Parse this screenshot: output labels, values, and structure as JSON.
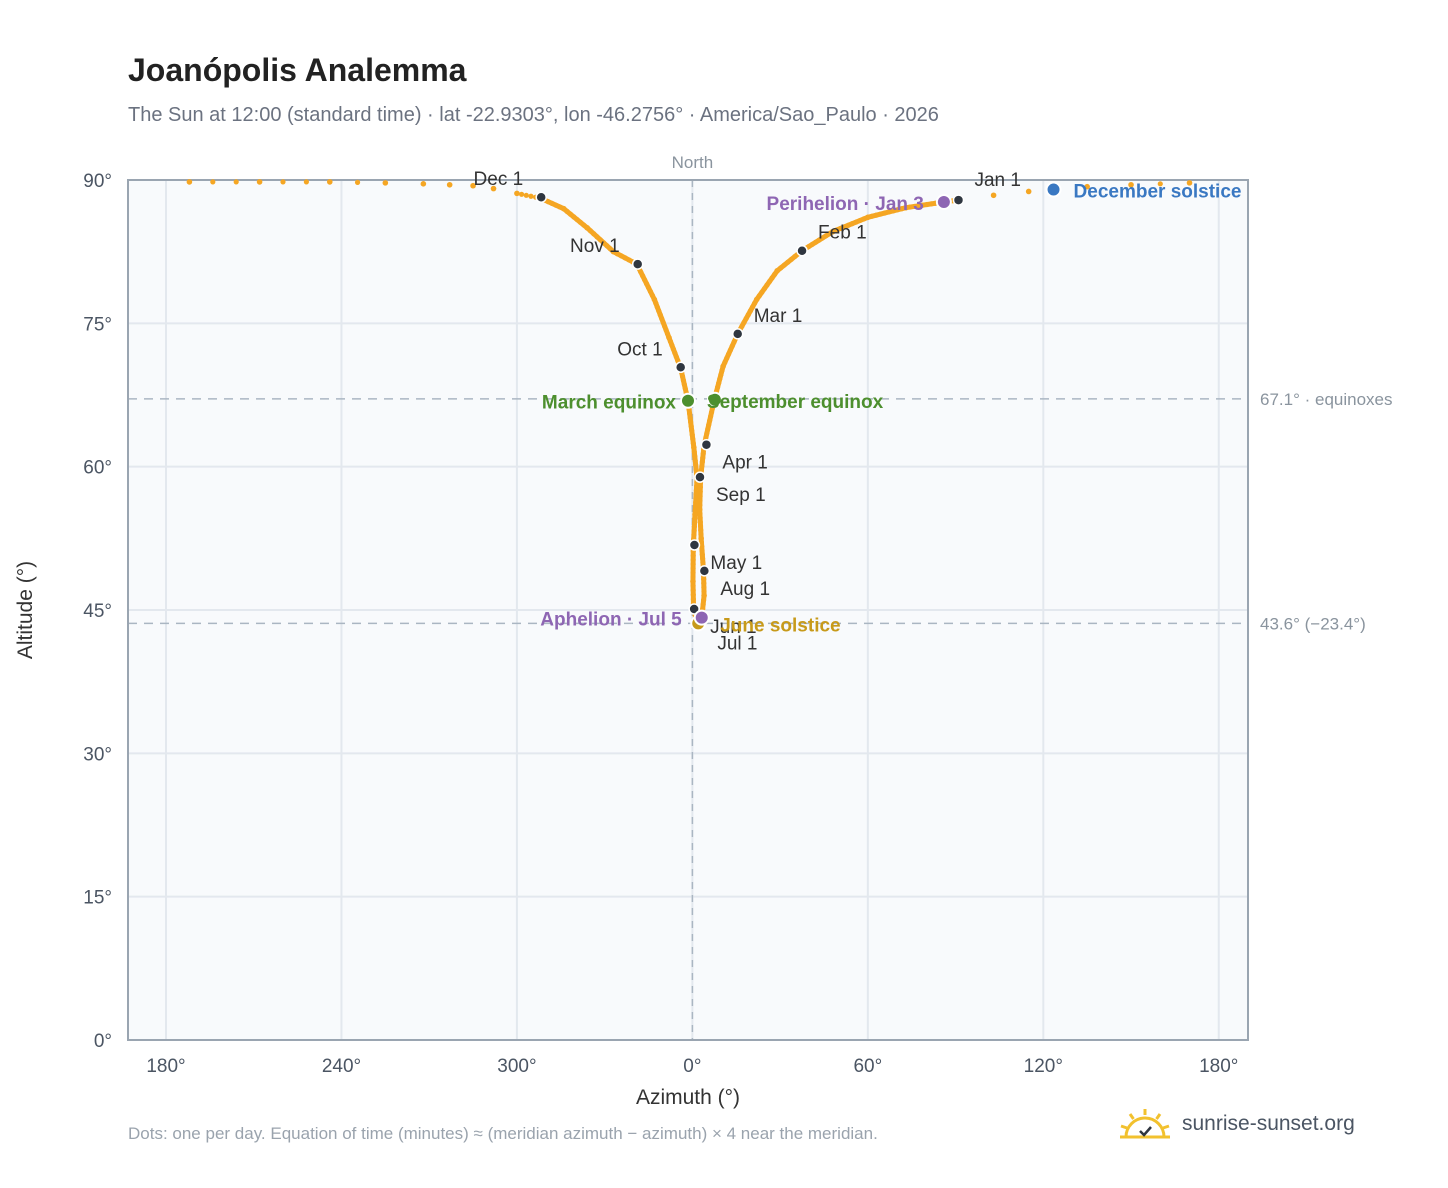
{
  "page": {
    "title": "Joanópolis Analemma",
    "subtitle": "The Sun at 12:00 (standard time) · lat -22.9303°, lon -46.2756° · America/Sao_Paulo · 2026",
    "footnote": "Dots: one per day. Equation of time (minutes) ≈ (meridian azimuth − azimuth) × 4 near the meridian.",
    "brand": "sunrise-sunset.org"
  },
  "chart_data": {
    "type": "scatter",
    "xlabel": "Azimuth (°)",
    "ylabel": "Altitude (°)",
    "north_label": "North",
    "x_ticks": [
      "180°",
      "240°",
      "300°",
      "0°",
      "60°",
      "120°",
      "180°"
    ],
    "y_ticks": [
      "0°",
      "15°",
      "30°",
      "45°",
      "60°",
      "75°",
      "90°"
    ],
    "ylim": [
      0,
      90
    ],
    "xlim_unwrapped": [
      -193,
      190
    ],
    "grid": true,
    "colors": {
      "curve": "#f5a623",
      "month_marker": "#2f3640",
      "equinox": "#4d8f2e",
      "solstice_june": "#c79a1a",
      "solstice_december": "#3a78c2",
      "apsis": "#8e66b3",
      "reference_line": "#aab6c2",
      "plot_bg": "#f8fafc"
    },
    "reference_lines": [
      {
        "altitude": 67.1,
        "label": "67.1° · equinoxes"
      },
      {
        "altitude": 43.6,
        "label": "43.6° (−23.4°)"
      }
    ],
    "series": [
      {
        "points": [
          {
            "az": -172,
            "alt": 89.8
          },
          {
            "az": -148,
            "alt": 89.8
          },
          {
            "az": -124,
            "alt": 89.8
          },
          {
            "az": -105,
            "alt": 89.7
          },
          {
            "az": -92,
            "alt": 89.6
          },
          {
            "az": -83,
            "alt": 89.5
          },
          {
            "az": -75,
            "alt": 89.4
          },
          {
            "az": -68,
            "alt": 89.1
          },
          {
            "az": -60,
            "alt": 88.6
          },
          {
            "az": -52,
            "alt": 88.1
          },
          {
            "az": -44,
            "alt": 87.0
          },
          {
            "az": -36,
            "alt": 85.0
          },
          {
            "az": -27,
            "alt": 82.5
          },
          {
            "az": -19,
            "alt": 81.2
          },
          {
            "az": -13,
            "alt": 77.5
          },
          {
            "az": -8,
            "alt": 73.5
          },
          {
            "az": -4,
            "alt": 70.3
          },
          {
            "az": -1.5,
            "alt": 66.9
          },
          {
            "az": 0.5,
            "alt": 62.0
          },
          {
            "az": 1.6,
            "alt": 58.8
          },
          {
            "az": 0.9,
            "alt": 55.0
          },
          {
            "az": 0.3,
            "alt": 51.6
          },
          {
            "az": 0.2,
            "alt": 48.0
          },
          {
            "az": 0.4,
            "alt": 45.2
          },
          {
            "az": 1.5,
            "alt": 43.7
          },
          {
            "az": 3.2,
            "alt": 44.2
          },
          {
            "az": 4.0,
            "alt": 46.5
          },
          {
            "az": 3.8,
            "alt": 49.1
          },
          {
            "az": 3.0,
            "alt": 52.5
          },
          {
            "az": 2.5,
            "alt": 55.5
          },
          {
            "az": 2.8,
            "alt": 58.8
          },
          {
            "az": 4.0,
            "alt": 62.2
          },
          {
            "az": 7.5,
            "alt": 67.0
          },
          {
            "az": 10.5,
            "alt": 70.5
          },
          {
            "az": 15.5,
            "alt": 73.9
          },
          {
            "az": 22.0,
            "alt": 77.5
          },
          {
            "az": 29.0,
            "alt": 80.5
          },
          {
            "az": 37.5,
            "alt": 82.6
          },
          {
            "az": 48.0,
            "alt": 84.6
          },
          {
            "az": 60.0,
            "alt": 86.1
          },
          {
            "az": 73.0,
            "alt": 87.1
          },
          {
            "az": 86.0,
            "alt": 87.7
          },
          {
            "az": 91.0,
            "alt": 87.9
          },
          {
            "az": 103.0,
            "alt": 88.4
          },
          {
            "az": 115.0,
            "alt": 88.8
          },
          {
            "az": 123.5,
            "alt": 89.0
          },
          {
            "az": 135.0,
            "alt": 89.3
          },
          {
            "az": 150.0,
            "alt": 89.5
          },
          {
            "az": 170.0,
            "alt": 89.7
          }
        ]
      }
    ],
    "month_markers": [
      {
        "label": "Jan 1",
        "az": 91.0,
        "alt": 87.9
      },
      {
        "label": "Feb 1",
        "az": 37.5,
        "alt": 82.6
      },
      {
        "label": "Mar 1",
        "az": 15.5,
        "alt": 73.9
      },
      {
        "label": "Apr 1",
        "az": 4.8,
        "alt": 62.3
      },
      {
        "label": "May 1",
        "az": 0.7,
        "alt": 51.8
      },
      {
        "label": "Jun 1",
        "az": 0.6,
        "alt": 45.1
      },
      {
        "label": "Jul 1",
        "az": 1.7,
        "alt": 43.6
      },
      {
        "label": "Aug 1",
        "az": 4.1,
        "alt": 49.1
      },
      {
        "label": "Sep 1",
        "az": 2.6,
        "alt": 58.9
      },
      {
        "label": "Oct 1",
        "az": -4.0,
        "alt": 70.4
      },
      {
        "label": "Nov 1",
        "az": -18.7,
        "alt": 81.2
      },
      {
        "label": "Dec 1",
        "az": -51.7,
        "alt": 88.2
      }
    ],
    "events": [
      {
        "label": "March equinox",
        "az": -1.5,
        "alt": 66.9,
        "color_key": "equinox"
      },
      {
        "label": "September equinox",
        "az": 7.7,
        "alt": 67.0,
        "color_key": "equinox"
      },
      {
        "label": "June solstice",
        "az": 2.0,
        "alt": 43.6,
        "color_key": "solstice_june"
      },
      {
        "label": "December solstice",
        "az": 123.5,
        "alt": 89.0,
        "color_key": "solstice_december"
      },
      {
        "label": "Perihelion · Jan 3",
        "az": 86.0,
        "alt": 87.7,
        "color_key": "apsis"
      },
      {
        "label": "Aphelion · Jul 5",
        "az": 3.2,
        "alt": 44.2,
        "color_key": "apsis"
      }
    ]
  }
}
